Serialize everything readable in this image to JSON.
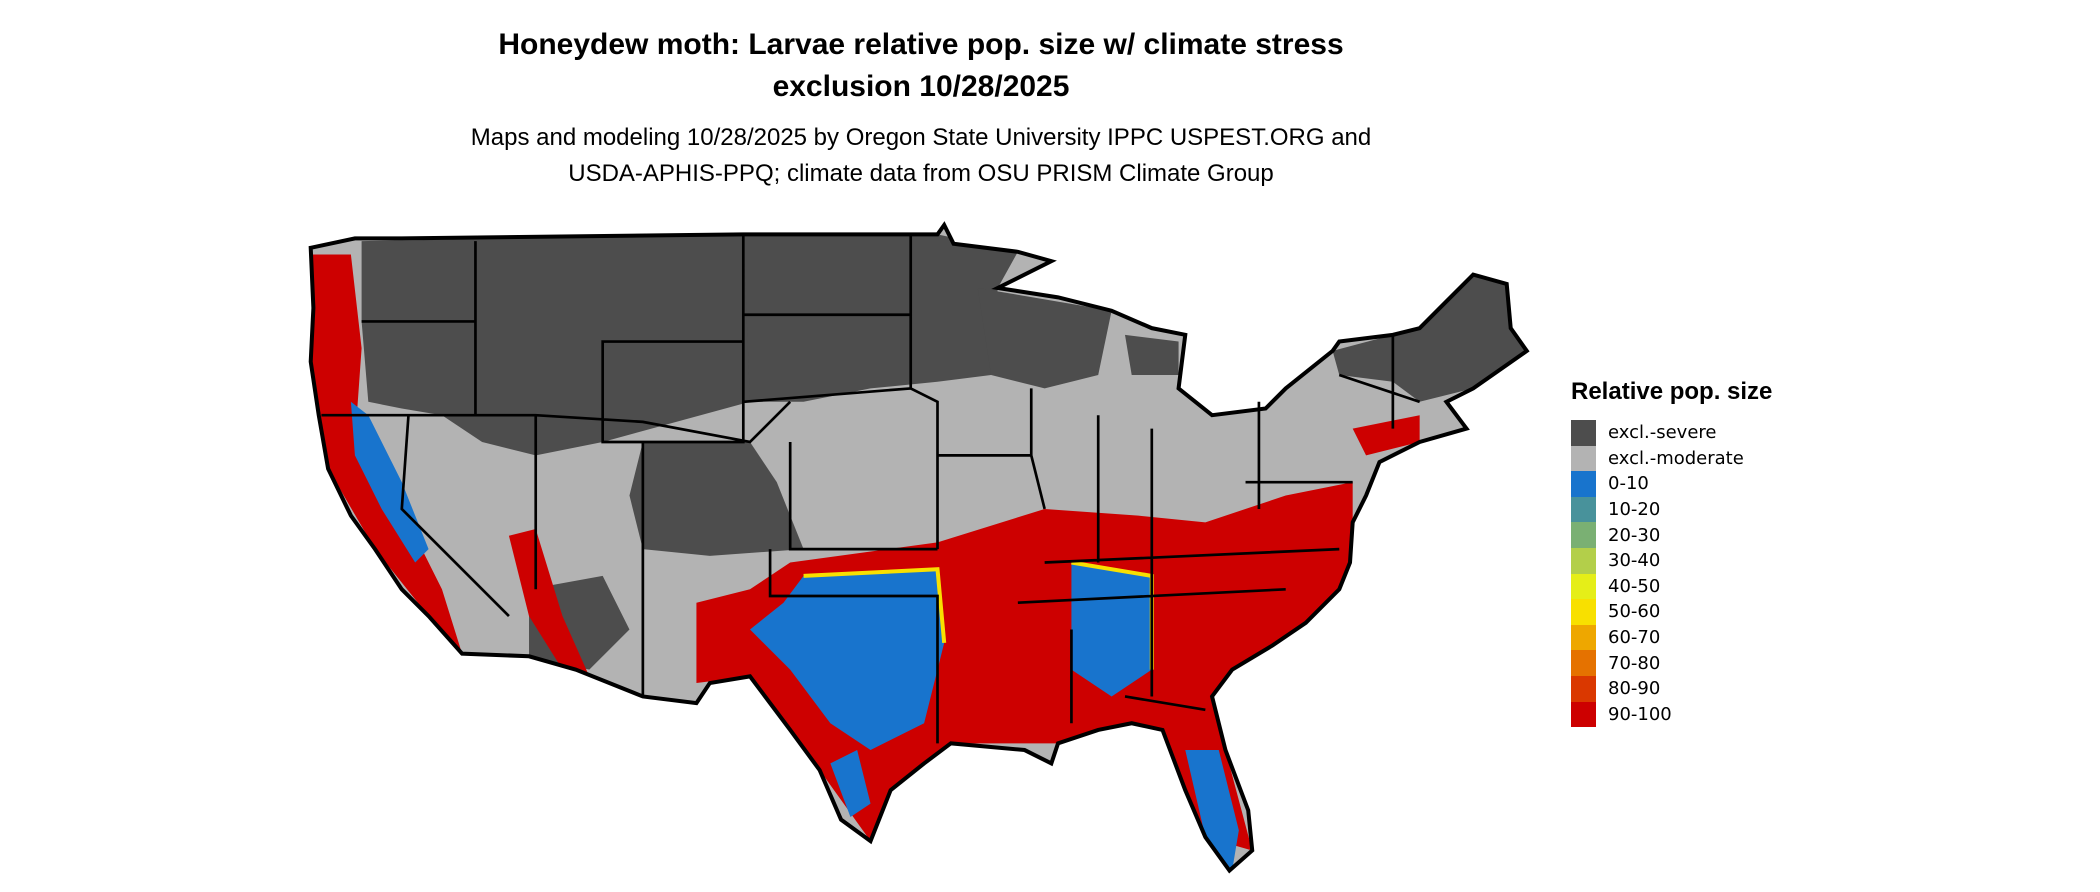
{
  "title": {
    "line1": "Honeydew moth: Larvae relative pop. size w/ climate stress",
    "line2": "exclusion 10/28/2025"
  },
  "subtitle": {
    "line1": "Maps and modeling 10/28/2025 by Oregon State University IPPC USPEST.ORG and",
    "line2": "USDA-APHIS-PPQ; climate data from OSU PRISM Climate Group"
  },
  "legend": {
    "title": "Relative pop. size",
    "items": [
      {
        "label": "excl.-severe",
        "color": "#4d4d4d"
      },
      {
        "label": "excl.-moderate",
        "color": "#b3b3b3"
      },
      {
        "label": "0-10",
        "color": "#1874cd"
      },
      {
        "label": "10-20",
        "color": "#48929b"
      },
      {
        "label": "20-30",
        "color": "#7ab073"
      },
      {
        "label": "30-40",
        "color": "#b3cf4a"
      },
      {
        "label": "40-50",
        "color": "#e5ee18"
      },
      {
        "label": "50-60",
        "color": "#f8e000"
      },
      {
        "label": "60-70",
        "color": "#eea700"
      },
      {
        "label": "70-80",
        "color": "#e57200"
      },
      {
        "label": "80-90",
        "color": "#da3800"
      },
      {
        "label": "90-100",
        "color": "#cd0000"
      }
    ]
  }
}
